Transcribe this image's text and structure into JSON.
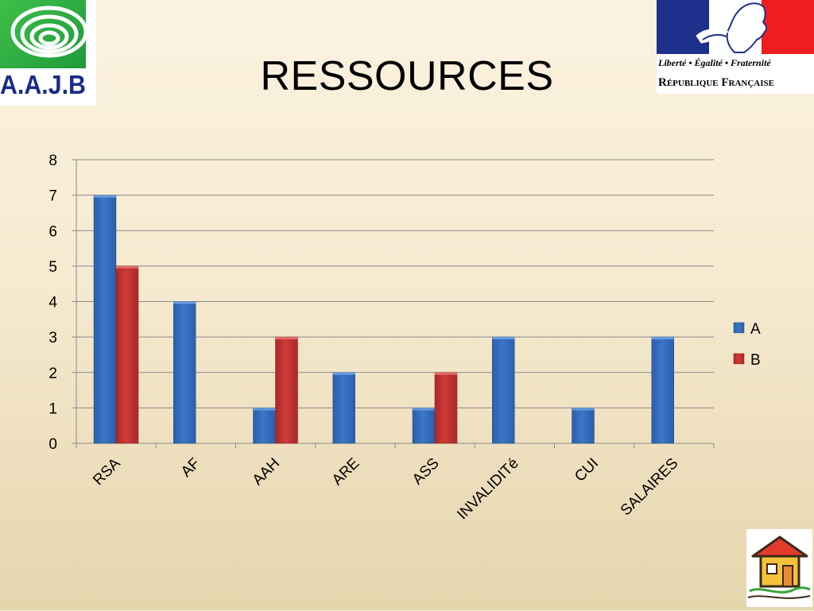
{
  "slide": {
    "title": "RESSOURCES"
  },
  "logos": {
    "aajb_text": "A.A.J.B",
    "rf_motto": "Liberté • Égalité • Fraternité",
    "rf_name": "République Française"
  },
  "colors": {
    "series_a": "#3a76c9",
    "series_b": "#cf3b37",
    "gridline": "#8c8c8c",
    "axis": "#8c8c8c"
  },
  "chart_data": {
    "type": "bar",
    "title": "",
    "xlabel": "",
    "ylabel": "",
    "categories": [
      "RSA",
      "AF",
      "AAH",
      "ARE",
      "ASS",
      "INVALIDITé",
      "CUI",
      "SALAIRES"
    ],
    "series": [
      {
        "name": "A",
        "values": [
          7,
          4,
          1,
          2,
          1,
          3,
          1,
          3
        ]
      },
      {
        "name": "B",
        "values": [
          5,
          0,
          3,
          0,
          2,
          0,
          0,
          0
        ]
      }
    ],
    "ylim": [
      0,
      8
    ],
    "yticks": [
      0,
      1,
      2,
      3,
      4,
      5,
      6,
      7,
      8
    ],
    "grid": true,
    "legend_position": "right"
  }
}
